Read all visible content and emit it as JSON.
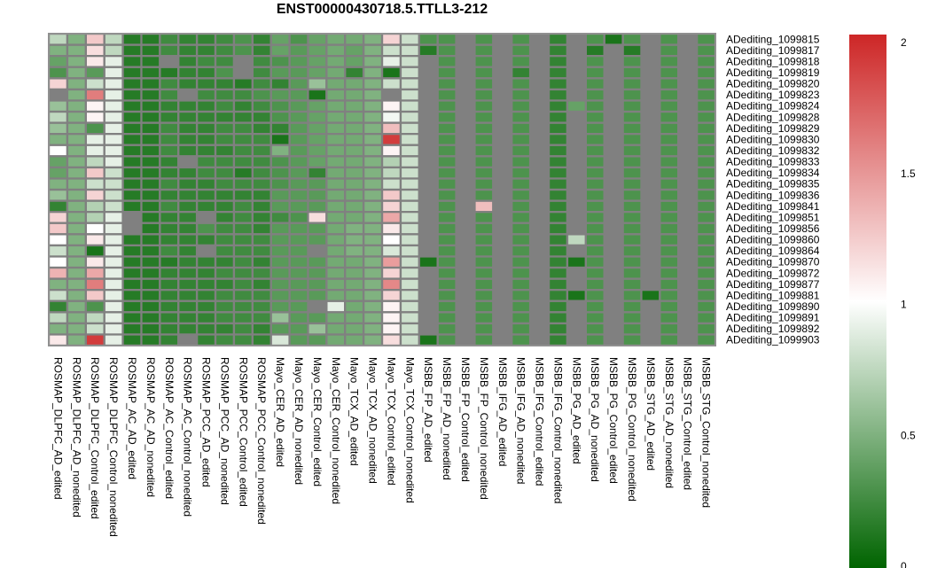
{
  "chart_data": {
    "type": "heatmap",
    "title": "ENST00000430718.5.TTLL3-212",
    "columns": [
      "ROSMAP_DLPFC_AD_edited",
      "ROSMAP_DLPFC_AD_nonedited",
      "ROSMAP_DLPFC_Control_edited",
      "ROSMAP_DLPFC_Control_nonedited",
      "ROSMAP_AC_AD_edited",
      "ROSMAP_AC_AD_nonedited",
      "ROSMAP_AC_Control_edited",
      "ROSMAP_AC_Control_nonedited",
      "ROSMAP_PCC_AD_edited",
      "ROSMAP_PCC_AD_nonedited",
      "ROSMAP_PCC_Control_edited",
      "ROSMAP_PCC_Control_nonedited",
      "Mayo_CER_AD_edited",
      "Mayo_CER_AD_nonedited",
      "Mayo_CER_Control_edited",
      "Mayo_CER_Control_nonedited",
      "Mayo_TCX_AD_edited",
      "Mayo_TCX_AD_nonedited",
      "Mayo_TCX_Control_edited",
      "Mayo_TCX_Control_nonedited",
      "MSBB_FP_AD_edited",
      "MSBB_FP_AD_nonedited",
      "MSBB_FP_Control_edited",
      "MSBB_FP_Control_nonedited",
      "MSBB_IFG_AD_edited",
      "MSBB_IFG_AD_nonedited",
      "MSBB_IFG_Control_edited",
      "MSBB_IFG_Control_nonedited",
      "MSBB_PG_AD_edited",
      "MSBB_PG_AD_nonedited",
      "MSBB_PG_Control_edited",
      "MSBB_PG_Control_nonedited",
      "MSBB_STG_AD_edited",
      "MSBB_STG_AD_nonedited",
      "MSBB_STG_Control_edited",
      "MSBB_STG_Control_nonedited"
    ],
    "rows": [
      "ADediting_1099815",
      "ADediting_1099817",
      "ADediting_1099818",
      "ADediting_1099819",
      "ADediting_1099820",
      "ADediting_1099823",
      "ADediting_1099824",
      "ADediting_1099828",
      "ADediting_1099829",
      "ADediting_1099830",
      "ADediting_1099832",
      "ADediting_1099833",
      "ADediting_1099834",
      "ADediting_1099835",
      "ADediting_1099836",
      "ADediting_1099841",
      "ADediting_1099851",
      "ADediting_1099856",
      "ADediting_1099860",
      "ADediting_1099864",
      "ADediting_1099870",
      "ADediting_1099872",
      "ADediting_1099877",
      "ADediting_1099881",
      "ADediting_1099890",
      "ADediting_1099891",
      "ADediting_1099892",
      "ADediting_1099903"
    ],
    "values": [
      [
        0.75,
        0.5,
        1.25,
        0.75,
        0.15,
        0.15,
        0.25,
        0.2,
        0.2,
        0.25,
        0.3,
        0.2,
        0.4,
        0.3,
        0.4,
        0.45,
        0.45,
        0.5,
        1.2,
        0.8,
        0.3,
        0.3,
        null,
        0.3,
        null,
        0.3,
        null,
        0.2,
        null,
        0.3,
        0.1,
        0.3,
        null,
        0.3,
        null,
        0.3
      ],
      [
        0.5,
        0.5,
        1.15,
        0.75,
        0.15,
        0.15,
        0.25,
        0.2,
        0.2,
        0.25,
        0.3,
        0.2,
        0.4,
        0.35,
        0.4,
        0.45,
        0.4,
        0.5,
        0.8,
        0.8,
        0.15,
        0.3,
        null,
        0.3,
        null,
        0.3,
        null,
        0.2,
        null,
        0.15,
        null,
        0.15,
        null,
        0.3,
        null,
        0.3
      ],
      [
        0.4,
        0.5,
        1.1,
        0.9,
        0.15,
        0.15,
        null,
        0.2,
        0.25,
        0.25,
        null,
        0.25,
        0.3,
        0.35,
        0.4,
        0.45,
        0.4,
        0.5,
        0.9,
        0.8,
        null,
        0.3,
        null,
        0.3,
        null,
        0.3,
        null,
        0.2,
        null,
        0.3,
        null,
        0.3,
        null,
        0.3,
        null,
        0.3
      ],
      [
        0.3,
        0.5,
        0.35,
        0.9,
        0.15,
        0.15,
        0.15,
        0.2,
        0.2,
        0.3,
        null,
        0.25,
        0.35,
        0.35,
        0.4,
        0.45,
        0.2,
        0.5,
        0.1,
        0.8,
        null,
        0.3,
        null,
        0.3,
        null,
        0.2,
        null,
        0.2,
        null,
        0.3,
        null,
        0.3,
        null,
        0.3,
        null,
        0.3
      ],
      [
        1.2,
        0.5,
        0.8,
        0.9,
        0.15,
        0.15,
        0.25,
        0.2,
        0.2,
        0.2,
        0.15,
        0.25,
        0.2,
        0.35,
        0.6,
        0.45,
        0.45,
        0.5,
        0.8,
        0.8,
        null,
        0.3,
        null,
        0.3,
        null,
        0.3,
        null,
        0.2,
        null,
        0.3,
        null,
        0.3,
        null,
        0.3,
        null,
        0.3
      ],
      [
        null,
        0.5,
        1.6,
        0.9,
        0.15,
        0.15,
        0.25,
        null,
        0.25,
        0.25,
        0.25,
        0.3,
        0.35,
        0.35,
        0.1,
        0.45,
        0.45,
        0.5,
        null,
        0.8,
        null,
        0.3,
        null,
        0.3,
        null,
        0.3,
        null,
        0.2,
        null,
        0.3,
        null,
        0.3,
        null,
        0.3,
        null,
        0.3
      ],
      [
        0.6,
        0.5,
        1.05,
        0.9,
        0.15,
        0.15,
        0.2,
        0.2,
        0.2,
        0.25,
        0.2,
        0.25,
        0.3,
        0.35,
        0.4,
        0.45,
        0.45,
        0.5,
        1.05,
        0.8,
        null,
        0.3,
        null,
        0.3,
        null,
        0.3,
        null,
        0.2,
        0.4,
        0.3,
        null,
        0.3,
        null,
        0.3,
        null,
        0.3
      ],
      [
        0.75,
        0.5,
        1.05,
        0.9,
        0.15,
        0.15,
        0.2,
        0.2,
        0.2,
        0.2,
        0.2,
        0.2,
        0.3,
        0.35,
        0.4,
        0.45,
        0.45,
        0.5,
        0.95,
        0.8,
        null,
        0.3,
        null,
        0.3,
        null,
        0.3,
        null,
        0.2,
        null,
        0.3,
        null,
        0.3,
        null,
        0.3,
        null,
        0.3
      ],
      [
        0.6,
        0.5,
        0.3,
        0.9,
        0.15,
        0.15,
        0.25,
        0.2,
        0.2,
        0.25,
        0.25,
        0.2,
        0.2,
        0.35,
        0.4,
        0.45,
        0.45,
        0.5,
        1.3,
        0.8,
        null,
        0.3,
        null,
        0.3,
        null,
        0.3,
        null,
        0.2,
        null,
        0.3,
        null,
        0.3,
        null,
        0.3,
        null,
        0.3
      ],
      [
        0.5,
        0.5,
        0.9,
        0.9,
        0.15,
        0.15,
        0.25,
        0.2,
        0.2,
        0.25,
        0.25,
        0.25,
        0.1,
        0.35,
        0.4,
        0.45,
        0.45,
        0.5,
        1.9,
        0.8,
        null,
        0.3,
        null,
        0.3,
        null,
        0.3,
        null,
        0.2,
        null,
        0.3,
        null,
        0.3,
        null,
        0.3,
        null,
        0.3
      ],
      [
        1.0,
        0.5,
        0.9,
        0.9,
        0.15,
        0.15,
        0.25,
        0.2,
        0.2,
        0.2,
        0.25,
        0.25,
        0.5,
        0.35,
        0.4,
        0.45,
        0.45,
        0.5,
        1.05,
        0.8,
        null,
        0.3,
        null,
        0.3,
        null,
        0.3,
        null,
        0.2,
        null,
        0.3,
        null,
        0.3,
        null,
        0.3,
        null,
        0.3
      ],
      [
        0.4,
        0.5,
        0.75,
        0.9,
        0.15,
        0.15,
        0.2,
        null,
        0.25,
        0.25,
        0.25,
        0.25,
        0.3,
        0.35,
        0.4,
        0.45,
        0.45,
        0.5,
        0.7,
        0.8,
        null,
        0.3,
        null,
        0.3,
        null,
        0.3,
        null,
        0.2,
        null,
        0.3,
        null,
        0.3,
        null,
        0.3,
        null,
        0.3
      ],
      [
        0.4,
        0.5,
        1.25,
        0.8,
        0.15,
        0.15,
        0.2,
        0.2,
        0.25,
        0.25,
        0.15,
        0.25,
        0.3,
        0.35,
        0.2,
        0.45,
        0.45,
        0.5,
        0.75,
        0.8,
        null,
        0.3,
        null,
        0.3,
        null,
        0.3,
        null,
        0.2,
        null,
        0.3,
        null,
        0.3,
        null,
        0.3,
        null,
        0.3
      ],
      [
        0.5,
        0.5,
        0.8,
        0.8,
        0.15,
        0.15,
        0.25,
        0.2,
        0.2,
        0.25,
        0.25,
        0.25,
        0.3,
        0.35,
        0.35,
        0.45,
        0.45,
        0.5,
        0.8,
        0.8,
        null,
        0.3,
        null,
        0.3,
        null,
        0.3,
        null,
        0.2,
        null,
        0.3,
        null,
        0.3,
        null,
        0.3,
        null,
        0.3
      ],
      [
        0.6,
        0.5,
        1.2,
        0.8,
        0.15,
        0.15,
        0.2,
        0.2,
        0.2,
        0.2,
        0.2,
        0.2,
        0.35,
        0.35,
        0.35,
        0.45,
        0.45,
        0.5,
        1.25,
        0.8,
        null,
        0.3,
        null,
        0.3,
        null,
        0.3,
        null,
        0.2,
        null,
        0.3,
        null,
        0.3,
        null,
        0.3,
        null,
        0.3
      ],
      [
        0.2,
        0.5,
        0.7,
        0.8,
        0.15,
        0.15,
        0.25,
        0.2,
        0.2,
        0.2,
        0.25,
        0.2,
        0.35,
        0.35,
        0.35,
        0.45,
        0.45,
        0.5,
        1.2,
        0.8,
        null,
        0.3,
        null,
        1.3,
        null,
        0.3,
        null,
        0.2,
        null,
        0.3,
        null,
        0.3,
        null,
        0.3,
        null,
        0.3
      ],
      [
        1.2,
        0.5,
        0.7,
        0.9,
        null,
        0.15,
        0.2,
        0.2,
        null,
        0.2,
        0.25,
        0.2,
        0.25,
        0.3,
        1.15,
        0.45,
        0.45,
        0.5,
        1.4,
        0.8,
        null,
        0.3,
        null,
        0.3,
        null,
        0.3,
        null,
        0.2,
        null,
        0.3,
        null,
        0.3,
        null,
        0.3,
        null,
        0.3
      ],
      [
        1.25,
        0.5,
        1.0,
        0.9,
        null,
        0.15,
        0.2,
        0.2,
        0.3,
        0.25,
        0.25,
        0.2,
        0.35,
        0.35,
        0.35,
        0.45,
        0.5,
        0.5,
        1.1,
        0.8,
        null,
        0.3,
        null,
        0.3,
        null,
        0.3,
        null,
        0.2,
        null,
        0.3,
        null,
        0.3,
        null,
        0.3,
        null,
        0.3
      ],
      [
        1.0,
        0.5,
        1.1,
        0.9,
        0.15,
        0.15,
        0.2,
        0.2,
        0.2,
        0.25,
        0.25,
        0.25,
        0.35,
        0.35,
        0.35,
        0.45,
        0.5,
        0.5,
        1.0,
        0.8,
        null,
        0.3,
        null,
        0.3,
        null,
        0.3,
        null,
        0.2,
        0.75,
        0.3,
        null,
        0.3,
        null,
        0.3,
        null,
        0.3
      ],
      [
        0.8,
        0.5,
        0.1,
        0.9,
        0.15,
        0.15,
        0.25,
        0.2,
        null,
        0.25,
        0.25,
        0.25,
        0.35,
        0.35,
        null,
        0.45,
        0.5,
        0.5,
        0.85,
        0.8,
        null,
        0.3,
        null,
        0.3,
        null,
        0.3,
        null,
        0.2,
        null,
        0.3,
        null,
        0.3,
        null,
        0.3,
        null,
        0.3
      ],
      [
        1.0,
        0.5,
        1.1,
        0.9,
        0.15,
        0.15,
        0.15,
        0.2,
        0.2,
        0.2,
        0.25,
        0.2,
        0.35,
        0.35,
        0.35,
        0.45,
        0.45,
        0.5,
        1.45,
        0.8,
        0.1,
        0.3,
        null,
        0.3,
        null,
        0.3,
        null,
        0.2,
        0.1,
        0.3,
        null,
        0.3,
        null,
        0.3,
        null,
        0.3
      ],
      [
        1.35,
        0.5,
        1.4,
        0.9,
        0.15,
        0.15,
        0.2,
        0.2,
        0.2,
        0.25,
        0.25,
        0.25,
        0.35,
        0.35,
        0.35,
        0.45,
        0.45,
        0.5,
        1.2,
        0.8,
        null,
        0.3,
        null,
        0.3,
        null,
        0.3,
        null,
        0.2,
        null,
        0.3,
        null,
        0.3,
        null,
        0.3,
        null,
        0.3
      ],
      [
        0.5,
        0.5,
        1.6,
        0.9,
        0.15,
        0.15,
        0.2,
        0.2,
        0.2,
        0.2,
        0.25,
        0.2,
        0.35,
        0.35,
        0.35,
        0.45,
        0.45,
        0.5,
        1.55,
        0.8,
        null,
        0.3,
        null,
        0.3,
        null,
        0.3,
        null,
        0.2,
        null,
        0.3,
        null,
        0.3,
        null,
        0.3,
        null,
        0.3
      ],
      [
        0.8,
        0.5,
        1.25,
        0.9,
        0.15,
        0.15,
        0.2,
        0.2,
        0.2,
        0.25,
        0.25,
        0.25,
        0.35,
        0.35,
        0.35,
        0.45,
        0.45,
        0.5,
        1.2,
        0.8,
        null,
        0.3,
        null,
        0.3,
        null,
        0.3,
        null,
        0.2,
        0.1,
        0.3,
        null,
        0.3,
        0.1,
        0.3,
        null,
        0.3
      ],
      [
        0.2,
        0.5,
        0.3,
        0.9,
        0.15,
        0.15,
        0.2,
        0.2,
        0.2,
        0.25,
        0.25,
        0.25,
        0.35,
        0.35,
        null,
        0.9,
        0.45,
        0.5,
        1.05,
        0.8,
        null,
        0.3,
        null,
        0.3,
        null,
        0.3,
        null,
        0.2,
        null,
        0.3,
        null,
        0.3,
        null,
        0.3,
        null,
        0.3
      ],
      [
        0.75,
        0.5,
        0.75,
        0.9,
        0.15,
        0.15,
        0.2,
        0.2,
        0.2,
        0.25,
        0.25,
        0.25,
        0.6,
        0.35,
        0.35,
        0.45,
        0.45,
        0.5,
        1.05,
        0.8,
        null,
        0.3,
        null,
        0.3,
        null,
        0.3,
        null,
        0.2,
        null,
        0.3,
        null,
        0.3,
        null,
        0.3,
        null,
        0.3
      ],
      [
        0.5,
        0.5,
        0.8,
        0.9,
        0.15,
        0.15,
        0.2,
        0.2,
        0.2,
        0.2,
        0.25,
        0.2,
        0.35,
        0.35,
        0.6,
        0.45,
        0.45,
        0.5,
        1.05,
        0.8,
        null,
        0.3,
        null,
        0.3,
        null,
        0.3,
        null,
        0.2,
        null,
        0.3,
        null,
        0.3,
        null,
        0.3,
        null,
        0.3
      ],
      [
        1.1,
        0.5,
        1.9,
        0.9,
        0.15,
        0.15,
        0.2,
        null,
        0.2,
        0.25,
        0.25,
        0.2,
        0.85,
        0.35,
        0.35,
        0.45,
        0.45,
        0.5,
        1.15,
        0.8,
        0.1,
        0.3,
        null,
        0.3,
        null,
        0.3,
        null,
        0.2,
        null,
        0.3,
        null,
        0.3,
        null,
        0.3,
        null,
        0.3
      ]
    ],
    "missing_color": "#808080",
    "colorscale": {
      "low": "#006400",
      "mid": "#ffffff",
      "high": "#cd2626",
      "min": 0,
      "mid_value": 1,
      "max": 2
    },
    "colorbar_ticks": [
      "0",
      "0.5",
      "1",
      "1.5",
      "2"
    ],
    "colorbar_tick_values": [
      0,
      0.5,
      1,
      1.5,
      2
    ]
  }
}
